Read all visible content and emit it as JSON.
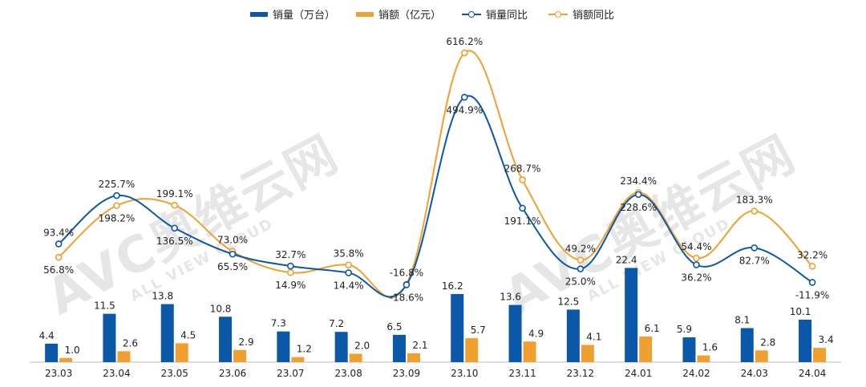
{
  "legend": {
    "sales_volume": "销量（万台）",
    "sales_amount": "销额（亿元）",
    "volume_yoy": "销量同比",
    "amount_yoy": "销额同比"
  },
  "watermark": {
    "logo": "AVC",
    "cn": "奥维云网",
    "en": "ALL VIEW CLOUD"
  },
  "colors": {
    "volume": "#0B57A8",
    "amount": "#F0A030"
  },
  "chart_data": {
    "type": "bar",
    "categories": [
      "23.03",
      "23.04",
      "23.05",
      "23.06",
      "23.07",
      "23.08",
      "23.09",
      "23.10",
      "23.11",
      "23.12",
      "24.01",
      "24.02",
      "24.03",
      "24.04"
    ],
    "series": [
      {
        "name": "销量（万台）",
        "type": "bar",
        "values": [
          4.4,
          11.5,
          13.8,
          10.8,
          7.3,
          7.2,
          6.5,
          16.2,
          13.6,
          12.5,
          22.4,
          5.9,
          8.1,
          10.1
        ],
        "labels": [
          "4.4",
          "11.5",
          "13.8",
          "10.8",
          "7.3",
          "7.2",
          "6.5",
          "16.2",
          "13.6",
          "12.5",
          "22.4",
          "5.9",
          "8.1",
          "10.1"
        ]
      },
      {
        "name": "销额（亿元）",
        "type": "bar",
        "values": [
          1.0,
          2.6,
          4.5,
          2.9,
          1.2,
          2.0,
          2.1,
          5.7,
          4.9,
          4.1,
          6.1,
          1.6,
          2.8,
          3.4
        ],
        "labels": [
          "1.0",
          "2.6",
          "4.5",
          "2.9",
          "1.2",
          "2.0",
          "2.1",
          "5.7",
          "4.9",
          "4.1",
          "6.1",
          "1.6",
          "2.8",
          "3.4"
        ]
      },
      {
        "name": "销量同比",
        "type": "line",
        "values": [
          93.4,
          225.7,
          136.5,
          65.5,
          32.7,
          14.4,
          -18.6,
          494.9,
          191.1,
          25.0,
          228.6,
          36.2,
          82.7,
          -11.9
        ],
        "labels": [
          "93.4%",
          "225.7%",
          "136.5%",
          "65.5%",
          "32.7%",
          "14.4%",
          "-18.6%",
          "494.9%",
          "191.1%",
          "25.0%",
          "228.6%",
          "36.2%",
          "82.7%",
          "-11.9%"
        ]
      },
      {
        "name": "销额同比",
        "type": "line",
        "values": [
          56.8,
          198.2,
          199.1,
          73.0,
          14.9,
          35.8,
          -16.8,
          616.2,
          268.7,
          49.2,
          234.4,
          54.4,
          183.3,
          32.2
        ],
        "labels": [
          "56.8%",
          "198.2%",
          "199.1%",
          "73.0%",
          "14.9%",
          "35.8%",
          "-16.8%",
          "616.2%",
          "268.7%",
          "49.2%",
          "234.4%",
          "54.4%",
          "183.3%",
          "32.2%"
        ]
      }
    ],
    "legend_position": "top",
    "grid": false
  }
}
